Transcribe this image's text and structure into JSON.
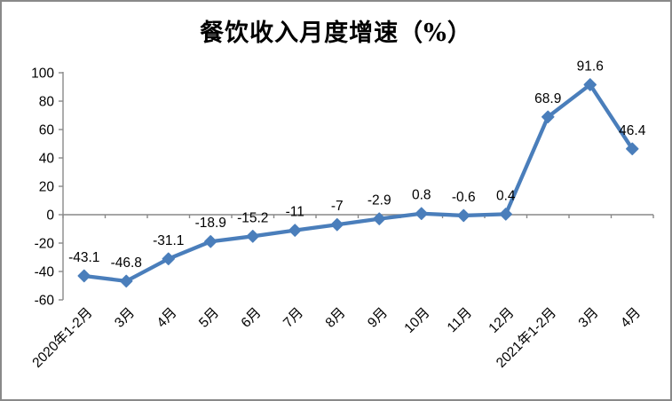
{
  "chart_title": "餐饮收入月度增速（%）",
  "chart_data": {
    "type": "line",
    "title": "餐饮收入月度增速（%）",
    "categories": [
      "2020年1-2月",
      "3月",
      "4月",
      "5月",
      "6月",
      "7月",
      "8月",
      "9月",
      "10月",
      "11月",
      "12月",
      "2021年1-2月",
      "3月",
      "4月"
    ],
    "series": [
      {
        "name": "餐饮收入月度增速",
        "values": [
          -43.1,
          -46.8,
          -31.1,
          -18.9,
          -15.2,
          -11,
          -7,
          -2.9,
          0.8,
          -0.6,
          0.4,
          68.9,
          91.6,
          46.4
        ],
        "labels": [
          "-43.1",
          "-46.8",
          "-31.1",
          "-18.9",
          "-15.2",
          "-11",
          "-7",
          "-2.9",
          "0.8",
          "-0.6",
          "0.4",
          "68.9",
          "91.6",
          "46.4"
        ]
      }
    ],
    "xlabel": "",
    "ylabel": "",
    "ylim": [
      -60,
      100
    ],
    "yticks": [
      100,
      80,
      60,
      40,
      20,
      0,
      -20,
      -40,
      -60
    ],
    "grid": false,
    "legend_position": "none",
    "marker": "diamond",
    "x_label_rotation_deg": -45,
    "colors": {
      "series_line": "#4a7ebb",
      "marker_fill": "#4a7ebb",
      "axis_line": "#898989",
      "text": "#000000",
      "frame_border": "#898989",
      "background": "#ffffff"
    }
  }
}
